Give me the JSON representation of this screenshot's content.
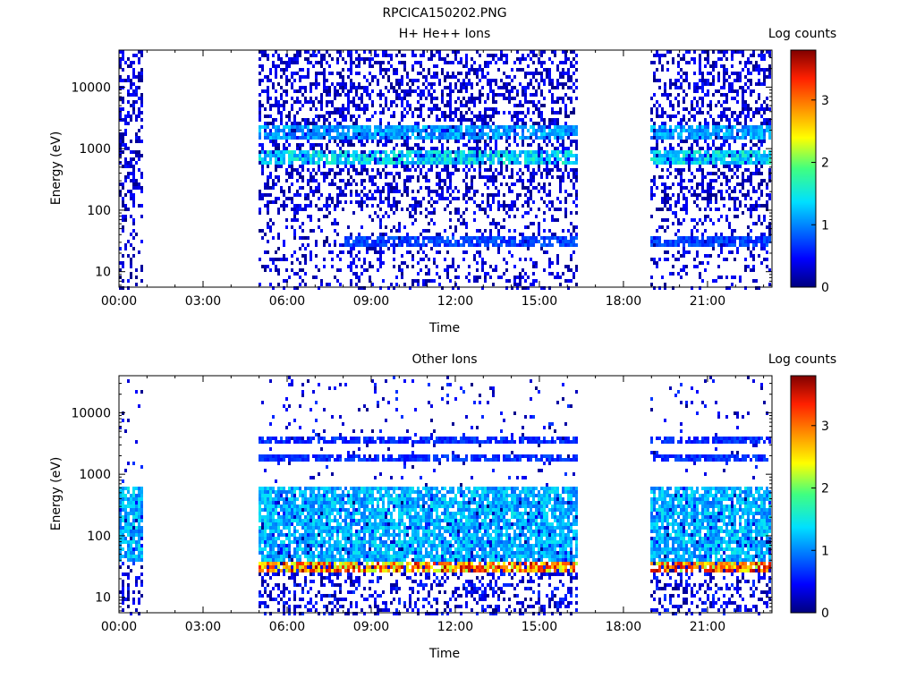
{
  "figure": {
    "title": "RPCICA150202.PNG"
  },
  "chart_data": [
    {
      "type": "heatmap",
      "title": "H+ He++ Ions",
      "xlabel": "Time",
      "ylabel": "Energy (eV)",
      "x_tick_labels": [
        "00:00",
        "03:00",
        "06:00",
        "09:00",
        "12:00",
        "15:00",
        "18:00",
        "21:00"
      ],
      "x_ticks_hours": [
        0,
        3,
        6,
        9,
        12,
        15,
        18,
        21
      ],
      "xlim_hours": [
        0,
        23.3
      ],
      "y_scale": "log",
      "ylim": [
        5.6,
        40000
      ],
      "y_tick_labels": [
        "10",
        "100",
        "1000",
        "10000"
      ],
      "y_ticks": [
        10,
        100,
        1000,
        10000
      ],
      "colorbar": {
        "label": "Log counts",
        "range": [
          0,
          3.8
        ],
        "tick_labels": [
          "0",
          "1",
          "2",
          "3"
        ],
        "ticks": [
          0,
          1,
          2,
          3
        ]
      },
      "data_segments_hours": [
        [
          0,
          0.9
        ],
        [
          5.0,
          16.35
        ],
        [
          19.0,
          23.25
        ]
      ],
      "bands": [
        {
          "energy_range_eV": [
            1500,
            2300
          ],
          "log_counts": 1.2,
          "time_ranges_hours": [
            [
              5.0,
              16.35
            ],
            [
              19.0,
              23.25
            ]
          ]
        },
        {
          "energy_range_eV": [
            550,
            950
          ],
          "log_counts": 1.5,
          "time_ranges_hours": [
            [
              5.0,
              16.35
            ],
            [
              19.0,
              23.25
            ]
          ]
        },
        {
          "energy_range_eV": [
            25,
            40
          ],
          "log_counts": 0.8,
          "time_ranges_hours": [
            [
              8.0,
              16.35
            ],
            [
              19.0,
              23.25
            ]
          ]
        }
      ]
    },
    {
      "type": "heatmap",
      "title": "Other Ions",
      "xlabel": "Time",
      "ylabel": "Energy (eV)",
      "x_tick_labels": [
        "00:00",
        "03:00",
        "06:00",
        "09:00",
        "12:00",
        "15:00",
        "18:00",
        "21:00"
      ],
      "x_ticks_hours": [
        0,
        3,
        6,
        9,
        12,
        15,
        18,
        21
      ],
      "xlim_hours": [
        0,
        23.3
      ],
      "y_scale": "log",
      "ylim": [
        5.6,
        40000
      ],
      "y_tick_labels": [
        "10",
        "100",
        "1000",
        "10000"
      ],
      "y_ticks": [
        10,
        100,
        1000,
        10000
      ],
      "colorbar": {
        "label": "Log counts",
        "range": [
          0,
          3.8
        ],
        "tick_labels": [
          "0",
          "1",
          "2",
          "3"
        ],
        "ticks": [
          0,
          1,
          2,
          3
        ]
      },
      "data_segments_hours": [
        [
          0,
          0.9
        ],
        [
          5.0,
          16.35
        ],
        [
          19.0,
          23.25
        ]
      ],
      "bands": [
        {
          "energy_range_eV": [
            24,
            38
          ],
          "log_counts": 3.2,
          "time_ranges_hours": [
            [
              5.0,
              16.35
            ],
            [
              19.0,
              23.25
            ]
          ]
        },
        {
          "energy_range_eV": [
            3200,
            4200
          ],
          "log_counts": 0.7,
          "time_ranges_hours": [
            [
              5.0,
              16.35
            ],
            [
              19.0,
              23.25
            ]
          ]
        },
        {
          "energy_range_eV": [
            1600,
            2100
          ],
          "log_counts": 0.7,
          "time_ranges_hours": [
            [
              5.0,
              16.35
            ],
            [
              19.0,
              23.25
            ]
          ]
        },
        {
          "energy_range_eV": [
            40,
            600
          ],
          "log_counts": 1.3,
          "time_ranges_hours": [
            [
              0,
              0.9
            ],
            [
              5.0,
              16.35
            ],
            [
              19.0,
              23.25
            ]
          ]
        }
      ]
    }
  ]
}
